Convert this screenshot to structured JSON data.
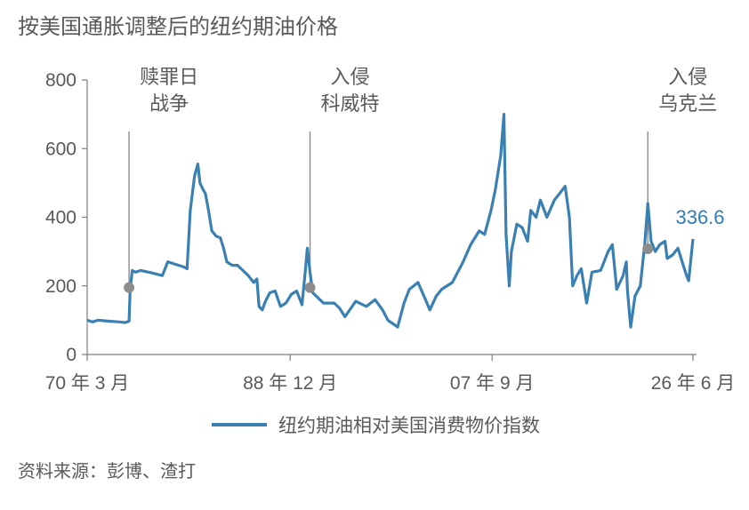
{
  "title": "按美国通胀调整后的纽约期油价格",
  "source": "资料来源：彭博、渣打",
  "colors": {
    "line": "#3a80b3",
    "marker": "#8c8c8c",
    "text": "#595959",
    "axis": "#7f7f7f",
    "last_label": "#2e7db5"
  },
  "chart_data": {
    "type": "line",
    "series": [
      {
        "name": "纽约期油相对美国消费物价指数",
        "x": [
          1970.0,
          1970.5,
          1971.0,
          1972.0,
          1973.0,
          1973.5,
          1973.9,
          1974.0,
          1974.2,
          1974.5,
          1975.0,
          1976.0,
          1977.0,
          1977.5,
          1978.0,
          1979.0,
          1979.3,
          1979.6,
          1980.0,
          1980.3,
          1980.5,
          1980.8,
          1981.0,
          1981.3,
          1981.6,
          1982.0,
          1982.4,
          1982.7,
          1983.0,
          1983.5,
          1984.0,
          1984.5,
          1985.0,
          1985.5,
          1985.8,
          1986.0,
          1986.3,
          1986.6,
          1987.0,
          1987.5,
          1988.0,
          1988.5,
          1989.0,
          1989.5,
          1990.0,
          1990.3,
          1990.5,
          1990.75,
          1991.0,
          1991.5,
          1992.0,
          1993.0,
          1993.5,
          1994.0,
          1995.0,
          1996.0,
          1996.8,
          1997.5,
          1998.0,
          1998.9,
          1999.5,
          2000.0,
          2000.8,
          2001.5,
          2001.9,
          2002.5,
          2003.0,
          2004.0,
          2005.0,
          2005.7,
          2006.5,
          2007.0,
          2007.6,
          2008.0,
          2008.5,
          2008.8,
          2009.0,
          2009.3,
          2009.5,
          2010.0,
          2010.5,
          2011.0,
          2011.3,
          2011.8,
          2012.2,
          2012.8,
          2013.5,
          2014.0,
          2014.5,
          2014.9,
          2015.2,
          2015.6,
          2016.0,
          2016.5,
          2017.0,
          2017.8,
          2018.5,
          2018.9,
          2019.3,
          2019.9,
          2020.2,
          2020.3,
          2020.4,
          2020.6,
          2021.0,
          2021.5,
          2021.9,
          2022.2,
          2022.5,
          2022.9,
          2023.3,
          2023.8,
          2024.0,
          2024.5,
          2025.0,
          2025.5,
          2025.8,
          2026.0,
          2026.4
        ],
        "y": [
          100,
          95,
          100,
          97,
          95,
          93,
          97,
          190,
          245,
          240,
          245,
          238,
          230,
          270,
          265,
          255,
          250,
          420,
          520,
          555,
          500,
          480,
          470,
          420,
          360,
          345,
          340,
          310,
          270,
          260,
          260,
          245,
          230,
          210,
          220,
          140,
          130,
          155,
          180,
          185,
          140,
          150,
          175,
          185,
          145,
          240,
          310,
          240,
          180,
          165,
          150,
          150,
          135,
          110,
          155,
          140,
          160,
          130,
          100,
          80,
          150,
          190,
          210,
          160,
          130,
          170,
          190,
          210,
          270,
          320,
          360,
          350,
          420,
          480,
          580,
          700,
          350,
          200,
          300,
          380,
          370,
          330,
          420,
          400,
          450,
          400,
          450,
          470,
          490,
          400,
          200,
          230,
          250,
          150,
          240,
          245,
          300,
          320,
          190,
          230,
          270,
          190,
          150,
          80,
          170,
          200,
          320,
          440,
          330,
          300,
          320,
          330,
          280,
          290,
          310,
          260,
          230,
          215,
          336.6
        ]
      }
    ],
    "x_ticks": [
      {
        "value": 1970.0,
        "label": "70 年 3 月"
      },
      {
        "value": 1988.9,
        "label": "88 年 12 月"
      },
      {
        "value": 2007.7,
        "label": "07 年 9 月"
      },
      {
        "value": 2026.4,
        "label": "26 年 6 月"
      }
    ],
    "y_ticks": [
      0,
      200,
      400,
      600,
      800
    ],
    "ylim": [
      0,
      800
    ],
    "xlim": [
      1970.0,
      2026.4
    ],
    "grid": false,
    "legend_position": "bottom",
    "last_value_label": "336.6",
    "annotations": [
      {
        "lines": [
          "赎罪日",
          "战争"
        ],
        "x": 1973.9,
        "y": 195
      },
      {
        "lines": [
          "入侵",
          "科威特"
        ],
        "x": 1990.75,
        "y": 195
      },
      {
        "lines": [
          "入侵",
          "乌克兰"
        ],
        "x": 2022.2,
        "y": 308
      }
    ]
  }
}
